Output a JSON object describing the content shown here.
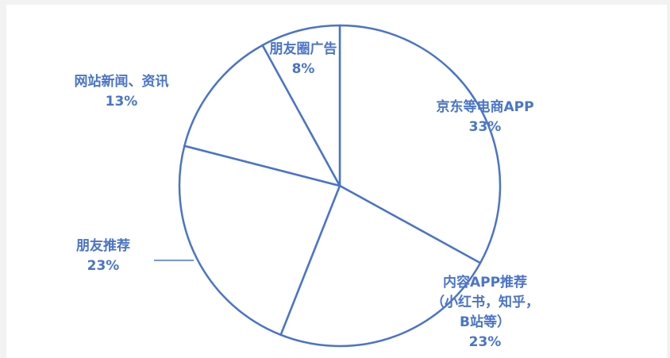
{
  "chart_data": {
    "type": "pie",
    "start_angle_deg": 0,
    "direction": "clockwise",
    "colors": {
      "stroke": "#4a74c9",
      "fill": "#ffffff",
      "label": "#4a74c9"
    },
    "slices": [
      {
        "label_lines": [
          "京东等电商APP"
        ],
        "value": 33,
        "value_text": "33%"
      },
      {
        "label_lines": [
          "内容APP推荐",
          "（小红书，知乎，",
          "B站等）"
        ],
        "value": 23,
        "value_text": "23%"
      },
      {
        "label_lines": [
          "朋友推荐"
        ],
        "value": 23,
        "value_text": "23%"
      },
      {
        "label_lines": [
          "网站新闻、资讯"
        ],
        "value": 13,
        "value_text": "13%"
      },
      {
        "label_lines": [
          "朋友圈广告"
        ],
        "value": 8,
        "value_text": "8%"
      }
    ]
  }
}
